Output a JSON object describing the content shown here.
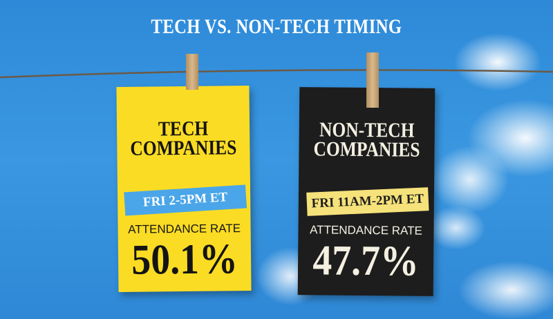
{
  "header": {
    "title": "TECH VS. NON-TECH TIMING"
  },
  "cards": [
    {
      "heading_line1": "TECH",
      "heading_line2": "COMPANIES",
      "time": "FRI 2-5PM ET",
      "label": "ATTENDANCE RATE",
      "rate": "50.1%"
    },
    {
      "heading_line1": "NON-TECH",
      "heading_line2": "COMPANIES",
      "time": "FRI 11AM-2PM ET",
      "label": "ATTENDANCE RATE",
      "rate": "47.7%"
    }
  ]
}
